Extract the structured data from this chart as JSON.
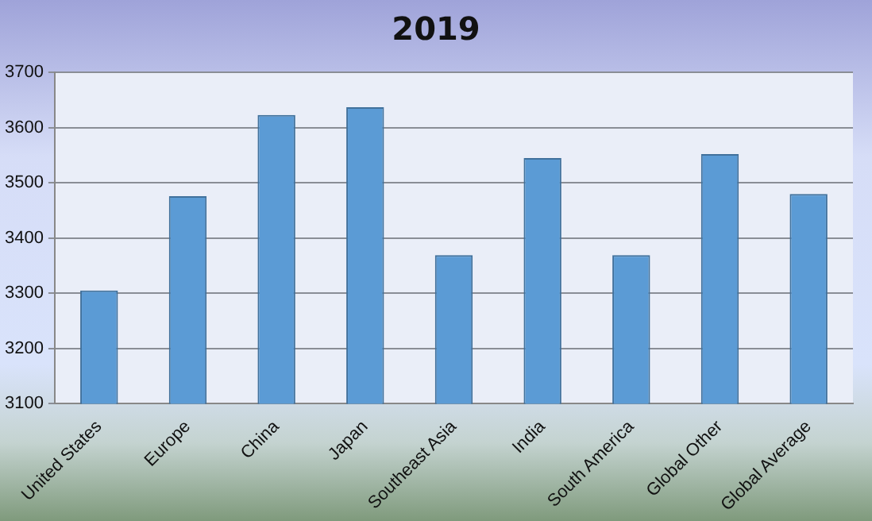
{
  "chart_data": {
    "type": "bar",
    "title": "2019",
    "categories": [
      "United States",
      "Europe",
      "China",
      "Japan",
      "Southeast Asia",
      "India",
      "South America",
      "Global Other",
      "Global Average"
    ],
    "values": [
      3305,
      3476,
      3623,
      3637,
      3369,
      3545,
      3369,
      3552,
      3480
    ],
    "color": "#5b9bd5",
    "ylim": [
      3100,
      3700
    ],
    "yticks": [
      3100,
      3200,
      3300,
      3400,
      3500,
      3600,
      3700
    ],
    "grid": "y",
    "legend": false
  }
}
